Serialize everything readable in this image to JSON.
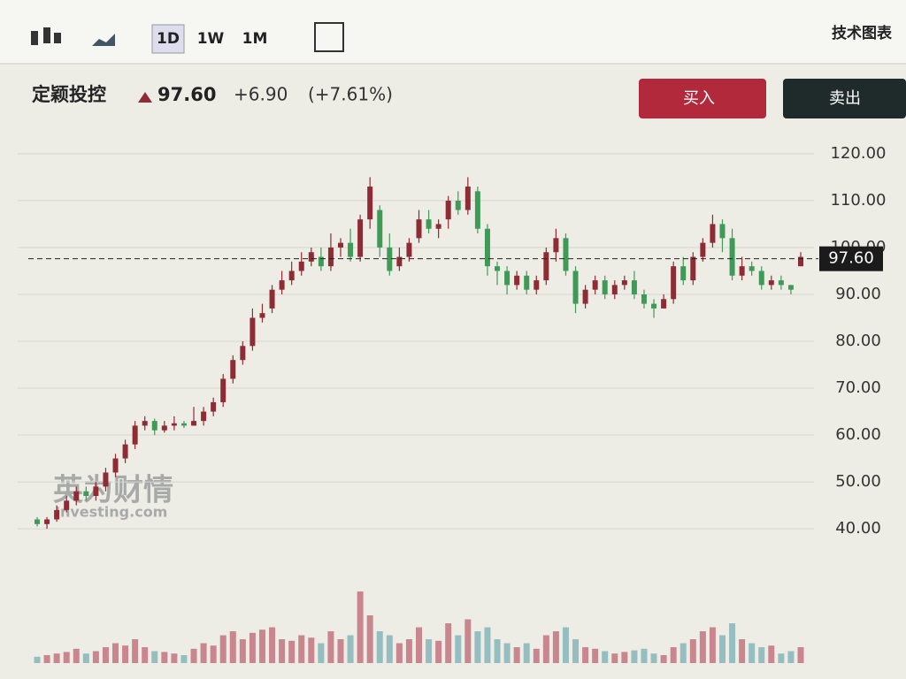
{
  "chart_data": {
    "type": "candlestick",
    "toolbar": {
      "intervals": [
        "1D",
        "1W",
        "1M"
      ],
      "menu": "技术图表"
    },
    "title": "定颖投控",
    "price": "97.60",
    "change": "+6.90",
    "change_percent": "(+7.61%)",
    "buttons": {
      "buy": "买入",
      "sell": "卖出"
    },
    "watermark": {
      "cn": "英为财情",
      "en": "Investing.com"
    },
    "up_color": "#8e2b34",
    "down_color": "#3f9a58",
    "volume_up_color": "#c06b78",
    "volume_down_color": "#7fb1b6",
    "open": [
      42,
      41,
      42,
      44,
      46,
      48,
      47,
      49,
      52,
      55,
      58,
      62,
      63,
      61,
      62,
      62.5,
      62,
      63,
      65,
      67,
      72,
      76,
      79,
      85,
      87,
      91,
      93,
      95,
      97,
      98,
      96,
      100,
      101,
      98,
      106,
      108,
      100,
      96,
      98,
      102,
      106,
      104,
      106,
      110,
      108,
      112,
      104,
      96,
      95,
      92,
      94,
      91,
      93,
      99,
      102,
      95,
      88,
      91,
      93,
      90,
      92,
      93,
      90,
      88,
      87,
      89,
      96,
      93,
      98,
      101,
      105,
      102,
      94,
      96,
      95,
      92,
      93,
      92,
      96
    ],
    "high": [
      42.5,
      42.5,
      45,
      47,
      49,
      49,
      50,
      53,
      56,
      59,
      63,
      64,
      63.5,
      63,
      64,
      63,
      66,
      66,
      68,
      73,
      77,
      80,
      87,
      88,
      92,
      95,
      97,
      99,
      100,
      100,
      103,
      102,
      104,
      107,
      115,
      109,
      103,
      100,
      102,
      108,
      108,
      106,
      111,
      112,
      115,
      113,
      105,
      97,
      96,
      95,
      95,
      94,
      100,
      104,
      103,
      96,
      92,
      94,
      94,
      93,
      94,
      95,
      91,
      89,
      90,
      97,
      98,
      99,
      102,
      107,
      106,
      104,
      98,
      97,
      96,
      94,
      94,
      92,
      99
    ],
    "low": [
      40.5,
      40,
      41.5,
      43.5,
      45,
      46,
      46,
      48,
      51,
      54,
      57,
      61,
      60,
      60.5,
      61,
      61.5,
      62,
      62,
      64,
      66,
      71,
      75,
      78,
      84,
      86,
      90,
      92,
      94,
      96,
      95,
      95,
      98,
      97,
      97,
      104,
      98,
      94,
      95,
      97,
      101,
      103,
      102,
      104,
      107,
      107,
      103,
      94,
      92,
      90,
      91,
      90,
      90,
      92,
      97,
      94,
      86,
      87,
      90,
      89,
      89,
      91,
      89,
      87,
      85,
      87,
      88,
      92,
      92,
      97,
      100,
      99,
      93,
      93,
      94,
      91,
      91,
      91,
      90,
      96
    ],
    "close": [
      41,
      42,
      44,
      46,
      48,
      47,
      49,
      52,
      55,
      58,
      62,
      63,
      61,
      62,
      62.5,
      62,
      63,
      65,
      67,
      72,
      76,
      79,
      85,
      86,
      91,
      93,
      95,
      97,
      99,
      96,
      100,
      101,
      98,
      106,
      113,
      100,
      95,
      98,
      101,
      106,
      104,
      105,
      110,
      108,
      113,
      104,
      96,
      95,
      92,
      94,
      91,
      93,
      99,
      102,
      95,
      88,
      91,
      93,
      90,
      92,
      93,
      90,
      88,
      87,
      89,
      96,
      93,
      98,
      101,
      105,
      102,
      94,
      96,
      95,
      92,
      93,
      92,
      91,
      98
    ],
    "volume": [
      8,
      10,
      12,
      14,
      18,
      12,
      15,
      20,
      25,
      22,
      30,
      20,
      15,
      14,
      12,
      10,
      18,
      25,
      22,
      35,
      40,
      30,
      38,
      42,
      45,
      30,
      28,
      35,
      32,
      25,
      40,
      30,
      35,
      90,
      60,
      40,
      35,
      25,
      30,
      45,
      30,
      28,
      50,
      35,
      55,
      40,
      45,
      30,
      25,
      20,
      25,
      18,
      35,
      40,
      45,
      30,
      20,
      18,
      15,
      12,
      14,
      16,
      18,
      12,
      10,
      20,
      25,
      30,
      40,
      45,
      35,
      50,
      30,
      25,
      20,
      22,
      12,
      15,
      20
    ],
    "vlim": [
      0,
      100
    ],
    "ylim": [
      37,
      123
    ],
    "yticks": [
      {
        "value": 40,
        "label": "40.00"
      },
      {
        "value": 50,
        "label": "50.00"
      },
      {
        "value": 60,
        "label": "60.00"
      },
      {
        "value": 70,
        "label": "70.00"
      },
      {
        "value": 80,
        "label": "80.00"
      },
      {
        "value": 90,
        "label": "90.00"
      },
      {
        "value": 100,
        "label": "100.00"
      },
      {
        "value": 110,
        "label": "110.00"
      },
      {
        "value": 120,
        "label": "120.00"
      }
    ],
    "last_price": {
      "value": 97.6,
      "label": "97.60"
    },
    "grid": true
  }
}
